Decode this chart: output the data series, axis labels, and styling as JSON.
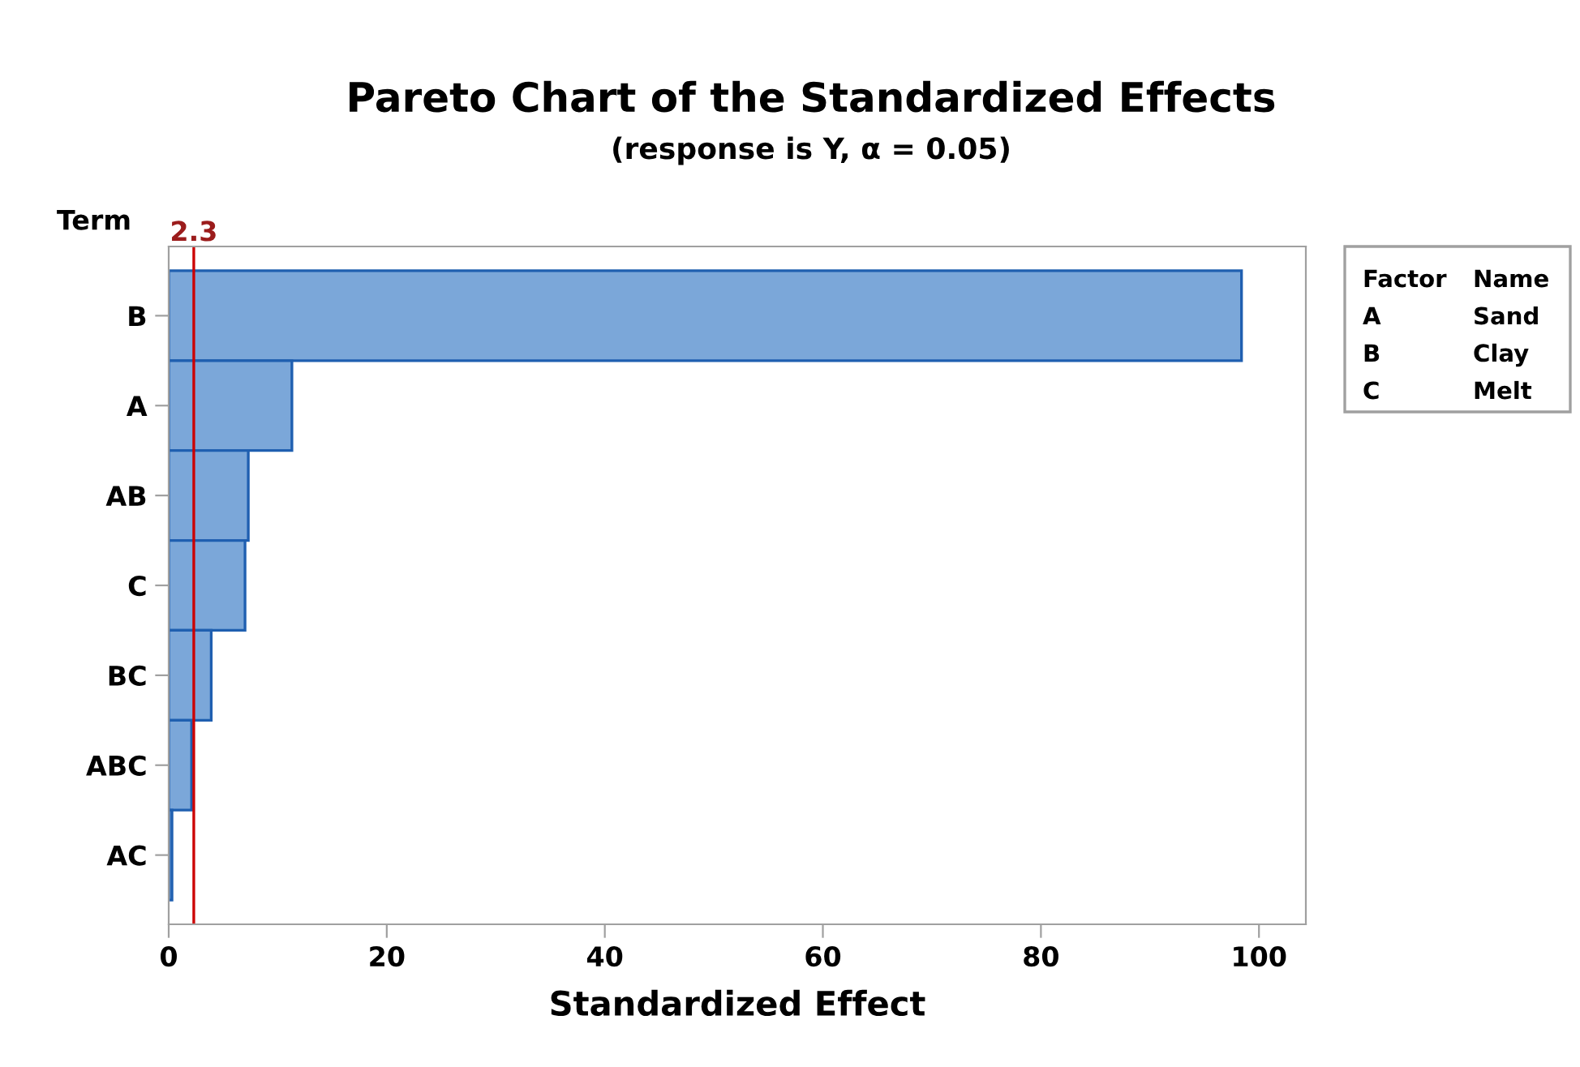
{
  "chart_data": {
    "type": "bar",
    "orientation": "horizontal",
    "title": "Pareto Chart of the Standardized Effects",
    "subtitle": "(response is Y, α = 0.05)",
    "xlabel": "Standardized Effect",
    "ylabel": "Term",
    "categories": [
      "B",
      "A",
      "AB",
      "C",
      "BC",
      "ABC",
      "AC"
    ],
    "values": [
      98.4,
      11.3,
      7.3,
      7.0,
      3.9,
      2.1,
      0.3
    ],
    "color": "#7ba7d9",
    "xlim": [
      0,
      104.3
    ],
    "xticks": [
      0,
      20,
      40,
      60,
      80,
      100
    ],
    "grid": false,
    "legend": false,
    "ref_lines": [
      {
        "axis": "x",
        "value": 2.3,
        "label": "2.3",
        "color": "#cc0000"
      }
    ],
    "annotations": [
      "Factor",
      "Name",
      "A",
      "Sand",
      "B",
      "Clay",
      "C",
      "Melt"
    ]
  }
}
